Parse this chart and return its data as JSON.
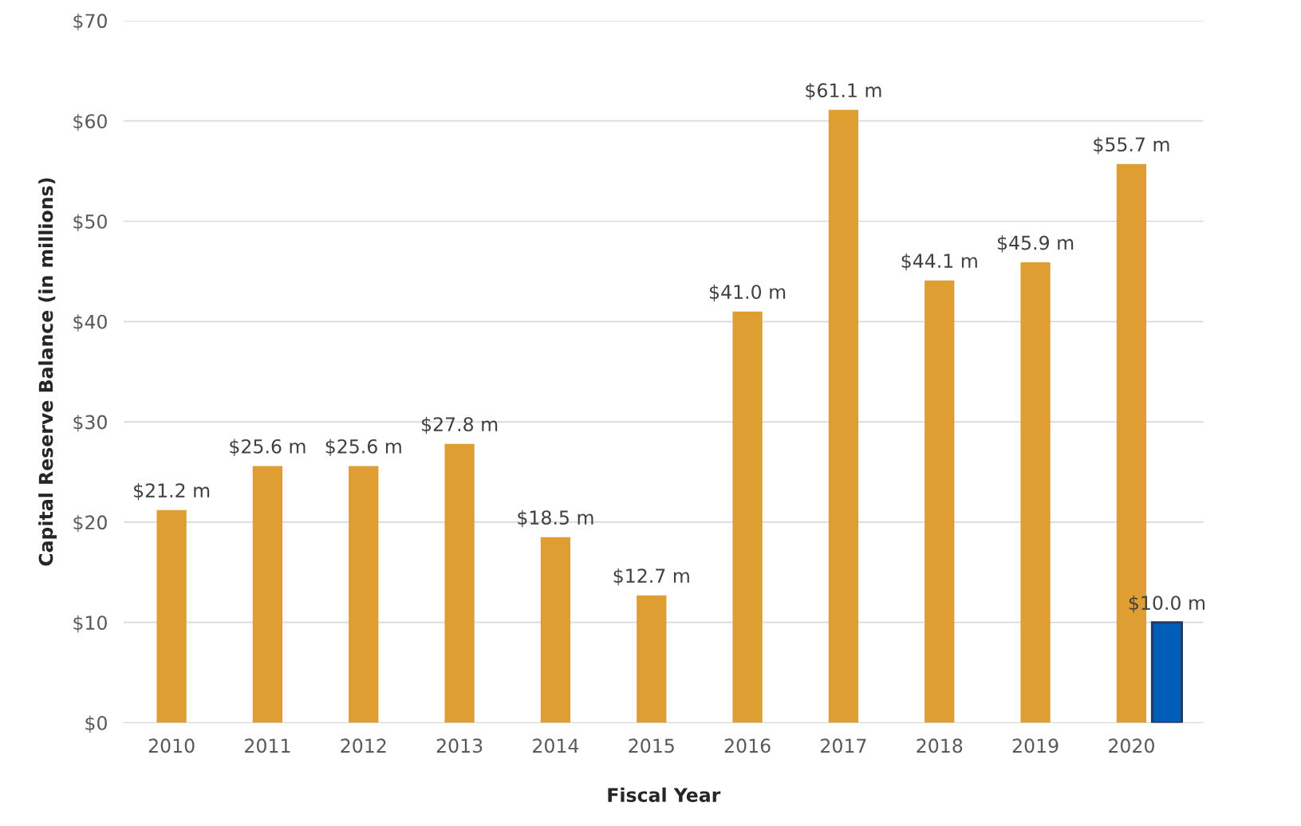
{
  "chart_data": {
    "type": "bar",
    "xlabel": "Fiscal Year",
    "ylabel": "Capital Reserve Balance (in millions)",
    "categories": [
      "2010",
      "2011",
      "2012",
      "2013",
      "2014",
      "2015",
      "2016",
      "2017",
      "2018",
      "2019",
      "2020"
    ],
    "series": [
      {
        "color": "#de9e32",
        "values": [
          21.2,
          25.6,
          25.6,
          27.8,
          18.5,
          12.7,
          41.0,
          61.1,
          44.1,
          45.9,
          55.7
        ],
        "value_labels": [
          "$21.2 m",
          "$25.6 m",
          "$25.6 m",
          "$27.8 m",
          "$18.5 m",
          "$12.7 m",
          "$41.0 m",
          "$61.1 m",
          "$44.1 m",
          "$45.9 m",
          "$55.7 m"
        ]
      },
      {
        "color": "#005eb8",
        "values": [
          null,
          null,
          null,
          null,
          null,
          null,
          null,
          null,
          null,
          null,
          10.0
        ],
        "value_labels": [
          null,
          null,
          null,
          null,
          null,
          null,
          null,
          null,
          null,
          null,
          "$10.0 m"
        ]
      }
    ],
    "ylim": [
      0,
      70
    ],
    "yticks": [
      {
        "value": 0,
        "label": "$0"
      },
      {
        "value": 10,
        "label": "$10"
      },
      {
        "value": 20,
        "label": "$20"
      },
      {
        "value": 30,
        "label": "$30"
      },
      {
        "value": 40,
        "label": "$40"
      },
      {
        "value": 50,
        "label": "$50"
      },
      {
        "value": 60,
        "label": "$60"
      },
      {
        "value": 70,
        "label": "$70"
      }
    ],
    "grid": "y",
    "legend": false
  }
}
